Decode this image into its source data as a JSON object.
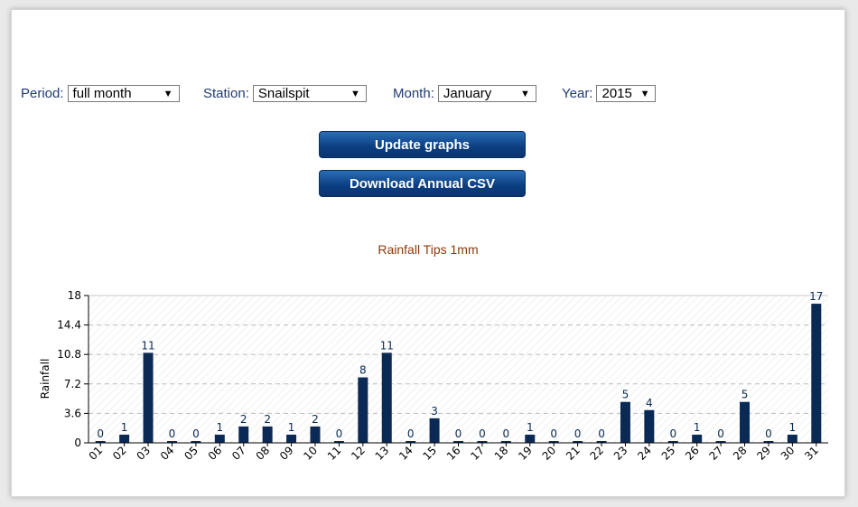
{
  "controls": {
    "period": {
      "label": "Period:",
      "value": "full month"
    },
    "station": {
      "label": "Station:",
      "value": "Snailspit"
    },
    "month": {
      "label": "Month:",
      "value": "January"
    },
    "year": {
      "label": "Year:",
      "value": "2015"
    }
  },
  "buttons": {
    "update": "Update graphs",
    "download": "Download Annual CSV"
  },
  "chart_data": {
    "type": "bar",
    "title": "Rainfall Tips 1mm",
    "ylabel": "Rainfall",
    "xlabel": "",
    "ylim": [
      0,
      18
    ],
    "yticks": [
      "0",
      "3.6",
      "7.2",
      "10.8",
      "14.4",
      "18"
    ],
    "categories": [
      "01",
      "02",
      "03",
      "04",
      "05",
      "06",
      "07",
      "08",
      "09",
      "10",
      "11",
      "12",
      "13",
      "14",
      "15",
      "16",
      "17",
      "18",
      "19",
      "20",
      "21",
      "22",
      "23",
      "24",
      "25",
      "26",
      "27",
      "28",
      "29",
      "30",
      "31"
    ],
    "values": [
      0,
      1,
      11,
      0,
      0,
      1,
      2,
      2,
      1,
      2,
      0,
      8,
      11,
      0,
      3,
      0,
      0,
      0,
      1,
      0,
      0,
      0,
      5,
      4,
      0,
      1,
      0,
      5,
      0,
      1,
      17
    ],
    "data_labels": [
      "0",
      "1",
      "11",
      "0",
      "0",
      "1",
      "2",
      "2",
      "1",
      "2",
      "0",
      "8",
      "11",
      "0",
      "3",
      "0",
      "0",
      "0",
      "1",
      "0",
      "0",
      "0",
      "5",
      "4",
      "0",
      "1",
      "0",
      "5",
      "0",
      "1",
      "17"
    ],
    "bar_color": "#0a2a55",
    "grid": true
  }
}
